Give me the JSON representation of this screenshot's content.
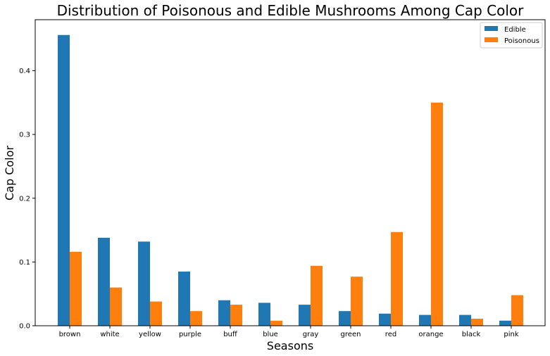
{
  "chart_data": {
    "type": "bar",
    "title": "Distribution of Poisonous and Edible Mushrooms Among Cap Color",
    "xlabel": "Seasons",
    "ylabel": "Cap Color",
    "ylim": [
      0,
      0.48
    ],
    "yticks": [
      0.0,
      0.1,
      0.2,
      0.3,
      0.4
    ],
    "ytick_labels": [
      "0.0",
      "0.1",
      "0.2",
      "0.3",
      "0.4"
    ],
    "categories": [
      "brown",
      "white",
      "yellow",
      "purple",
      "buff",
      "blue",
      "gray",
      "green",
      "red",
      "orange",
      "black",
      "pink"
    ],
    "series": [
      {
        "name": "Edible",
        "color": "#1f77b4",
        "values": [
          0.456,
          0.138,
          0.132,
          0.085,
          0.04,
          0.036,
          0.033,
          0.023,
          0.019,
          0.017,
          0.017,
          0.008
        ]
      },
      {
        "name": "Poisonous",
        "color": "#ff7f0e",
        "values": [
          0.116,
          0.06,
          0.038,
          0.023,
          0.033,
          0.008,
          0.094,
          0.077,
          0.147,
          0.35,
          0.011,
          0.048
        ]
      }
    ],
    "legend_position": "top-right",
    "grid": false
  }
}
